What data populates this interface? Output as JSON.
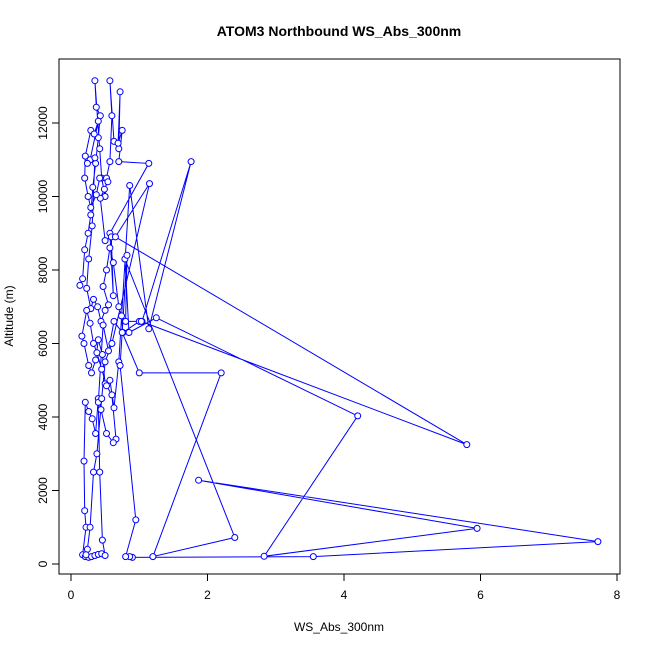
{
  "chart_data": {
    "type": "line",
    "title": "ATOM3 Northbound WS_Abs_300nm",
    "xlabel": "WS_Abs_300nm",
    "ylabel": "Altitude (m)",
    "xlim": [
      0,
      8
    ],
    "ylim": [
      0,
      13000
    ],
    "x_ticks": [
      0,
      2,
      4,
      6,
      8
    ],
    "y_ticks": [
      0,
      2000,
      4000,
      6000,
      8000,
      10000,
      12000
    ],
    "x_tick_labels": [
      "0",
      "2",
      "4",
      "6",
      "8"
    ],
    "y_tick_labels": [
      "0",
      "2000",
      "4000",
      "6000",
      "8000",
      "10000",
      "12000"
    ],
    "grid": false,
    "marker": "open-circle",
    "series": [
      {
        "color": "#0000ff",
        "points": [
          [
            0.13,
            7580
          ],
          [
            0.17,
            7760
          ],
          [
            0.2,
            8550
          ],
          [
            0.25,
            9000
          ],
          [
            0.29,
            9500
          ],
          [
            0.32,
            10250
          ],
          [
            0.36,
            10900
          ],
          [
            0.4,
            11600
          ],
          [
            0.43,
            12200
          ],
          [
            0.37,
            12430
          ],
          [
            0.35,
            13150
          ],
          [
            0.42,
            11300
          ],
          [
            0.45,
            10500
          ],
          [
            0.5,
            10000
          ],
          [
            0.52,
            10500
          ],
          [
            0.57,
            10950
          ],
          [
            0.6,
            12200
          ],
          [
            0.57,
            13150
          ],
          [
            0.63,
            11500
          ],
          [
            0.7,
            11300
          ],
          [
            0.72,
            12850
          ],
          [
            0.69,
            11450
          ],
          [
            0.75,
            11800
          ],
          [
            0.7,
            10950
          ],
          [
            1.14,
            10900
          ],
          [
            0.57,
            9000
          ],
          [
            0.62,
            7300
          ],
          [
            0.59,
            8900
          ],
          [
            0.5,
            8800
          ],
          [
            0.43,
            9950
          ],
          [
            0.49,
            10200
          ],
          [
            0.54,
            10400
          ],
          [
            0.42,
            10500
          ],
          [
            0.37,
            10050
          ],
          [
            0.29,
            9700
          ],
          [
            0.25,
            10000
          ],
          [
            0.2,
            10500
          ],
          [
            0.21,
            11100
          ],
          [
            0.29,
            11800
          ],
          [
            0.34,
            11700
          ],
          [
            0.4,
            12050
          ],
          [
            0.28,
            11000
          ],
          [
            0.24,
            10900
          ],
          [
            0.35,
            11050
          ],
          [
            0.31,
            9200
          ],
          [
            0.26,
            8300
          ],
          [
            0.23,
            7500
          ],
          [
            0.29,
            6950
          ],
          [
            0.33,
            7200
          ],
          [
            0.39,
            7000
          ],
          [
            0.44,
            6600
          ],
          [
            0.5,
            6900
          ],
          [
            0.55,
            7050
          ],
          [
            0.47,
            7550
          ],
          [
            0.52,
            8000
          ],
          [
            0.57,
            8600
          ],
          [
            0.62,
            8200
          ],
          [
            0.7,
            7000
          ],
          [
            0.74,
            6750
          ],
          [
            0.76,
            6300
          ],
          [
            1.0,
            6600
          ],
          [
            1.04,
            6600
          ],
          [
            1.76,
            10950
          ],
          [
            1.14,
            6400
          ],
          [
            0.86,
            10300
          ],
          [
            0.7,
            5500
          ],
          [
            0.63,
            4250
          ],
          [
            0.57,
            5000
          ],
          [
            0.5,
            4900
          ],
          [
            0.46,
            5700
          ],
          [
            0.4,
            6100
          ],
          [
            0.36,
            5550
          ],
          [
            0.3,
            5200
          ],
          [
            0.26,
            5400
          ],
          [
            0.19,
            6000
          ],
          [
            0.16,
            6200
          ],
          [
            0.23,
            6900
          ],
          [
            0.28,
            6550
          ],
          [
            0.33,
            6000
          ],
          [
            0.38,
            5750
          ],
          [
            0.45,
            5300
          ],
          [
            0.52,
            4850
          ],
          [
            0.6,
            4600
          ],
          [
            0.66,
            3400
          ],
          [
            0.62,
            3300
          ],
          [
            0.52,
            3550
          ],
          [
            0.44,
            4200
          ],
          [
            0.4,
            4500
          ],
          [
            0.36,
            3550
          ],
          [
            0.31,
            3950
          ],
          [
            0.26,
            4150
          ],
          [
            0.21,
            4400
          ],
          [
            0.19,
            2800
          ],
          [
            0.2,
            1450
          ],
          [
            0.22,
            1000
          ],
          [
            0.17,
            250
          ],
          [
            0.21,
            200
          ],
          [
            0.26,
            180
          ],
          [
            0.3,
            200
          ],
          [
            0.35,
            230
          ],
          [
            0.4,
            260
          ],
          [
            0.45,
            280
          ],
          [
            0.5,
            230
          ],
          [
            0.46,
            650
          ],
          [
            0.42,
            2500
          ],
          [
            0.4,
            4400
          ],
          [
            0.47,
            6500
          ],
          [
            0.55,
            5800
          ],
          [
            0.63,
            6600
          ],
          [
            0.75,
            6300
          ],
          [
            1.0,
            5200
          ],
          [
            2.2,
            5200
          ],
          [
            1.2,
            200
          ],
          [
            2.4,
            720
          ],
          [
            0.79,
            8300
          ],
          [
            0.85,
            6300
          ],
          [
            1.25,
            6700
          ],
          [
            4.2,
            4030
          ],
          [
            2.83,
            210
          ],
          [
            5.95,
            970
          ],
          [
            1.87,
            2280
          ],
          [
            7.72,
            610
          ],
          [
            3.55,
            200
          ],
          [
            0.9,
            180
          ],
          [
            0.86,
            200
          ],
          [
            0.8,
            200
          ],
          [
            0.95,
            1200
          ],
          [
            0.72,
            5400
          ],
          [
            0.82,
            8400
          ],
          [
            0.8,
            6600
          ],
          [
            1.03,
            6600
          ],
          [
            5.8,
            3250
          ],
          [
            0.65,
            8900
          ],
          [
            1.15,
            10350
          ],
          [
            0.6,
            6000
          ],
          [
            0.5,
            5500
          ],
          [
            0.45,
            4500
          ],
          [
            0.38,
            3000
          ],
          [
            0.33,
            2500
          ],
          [
            0.28,
            1000
          ],
          [
            0.24,
            400
          ],
          [
            0.22,
            250
          ]
        ]
      }
    ]
  }
}
